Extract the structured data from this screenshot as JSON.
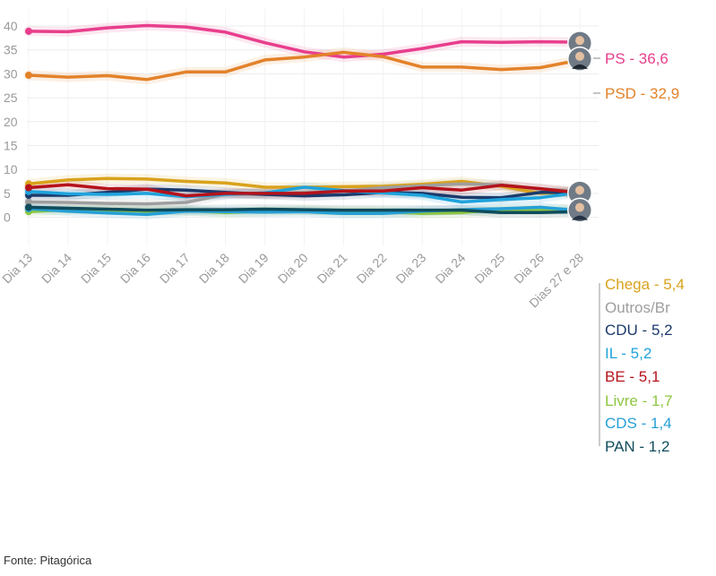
{
  "source": "Fonte: Pitagórica",
  "chart_data": {
    "type": "line",
    "categories": [
      "Dia 13",
      "Dia 14",
      "Dia 15",
      "Dia 16",
      "Dia 17",
      "Dia 18",
      "Dia 19",
      "Dia 20",
      "Dia 21",
      "Dia 22",
      "Dia 23",
      "Dia 24",
      "Dia 25",
      "Dia 26",
      "Dias 27 e 28"
    ],
    "y_ticks": [
      "40",
      "35",
      "30",
      "25",
      "20",
      "15",
      "10",
      "5",
      "0"
    ],
    "ylim": [
      -6,
      42
    ],
    "grid": true,
    "series": [
      {
        "name": "PS",
        "label": "PS - 36,6",
        "color": "#e83e8c",
        "values": [
          38.9,
          38.8,
          39.6,
          40.1,
          39.8,
          38.7,
          36.5,
          34.6,
          33.5,
          34.1,
          35.3,
          36.7,
          36.6,
          36.7,
          36.6
        ]
      },
      {
        "name": "PSD",
        "label": "PSD - 32,9",
        "color": "#e3822a",
        "values": [
          29.7,
          29.3,
          29.6,
          28.8,
          30.4,
          30.4,
          32.9,
          33.5,
          34.5,
          33.6,
          31.4,
          31.4,
          30.9,
          31.3,
          32.9
        ]
      },
      {
        "name": "Chega",
        "label": "Chega - 5,4",
        "color": "#d9a21c",
        "values": [
          7.0,
          7.8,
          8.1,
          8.0,
          7.5,
          7.2,
          6.3,
          6.3,
          6.4,
          6.5,
          6.9,
          7.5,
          6.5,
          5.0,
          5.4
        ]
      },
      {
        "name": "Outros/Br",
        "label": "Outros/Br",
        "color": "#9e9e9e",
        "values": [
          3.2,
          3.1,
          2.9,
          2.8,
          3.1,
          4.8,
          4.8,
          5.2,
          5.5,
          6.2,
          6.6,
          7.0,
          6.8,
          5.9,
          5.4
        ]
      },
      {
        "name": "CDU",
        "label": "CDU - 5,2",
        "color": "#1b3a6b",
        "values": [
          4.6,
          4.6,
          5.2,
          5.9,
          5.7,
          5.2,
          4.8,
          4.5,
          4.7,
          5.2,
          5.0,
          4.2,
          4.1,
          5.2,
          5.2
        ]
      },
      {
        "name": "IL",
        "label": "IL - 5,2",
        "color": "#1ea3dc",
        "values": [
          5.4,
          4.9,
          4.8,
          5.0,
          4.3,
          4.8,
          5.1,
          6.3,
          5.6,
          5.1,
          4.6,
          3.2,
          3.7,
          4.1,
          5.2
        ]
      },
      {
        "name": "BE",
        "label": "BE - 5,1",
        "color": "#b5121b",
        "values": [
          6.2,
          6.8,
          6.0,
          5.9,
          4.5,
          5.0,
          5.0,
          5.0,
          5.5,
          5.5,
          6.2,
          5.7,
          6.7,
          6.0,
          5.1
        ]
      },
      {
        "name": "Livre",
        "label": "Livre - 1,7",
        "color": "#8dc63f",
        "values": [
          1.2,
          1.6,
          1.5,
          1.3,
          1.4,
          1.0,
          1.3,
          1.5,
          1.2,
          1.2,
          0.8,
          1.0,
          1.6,
          1.6,
          1.7
        ]
      },
      {
        "name": "CDS",
        "label": "CDS - 1,4",
        "color": "#26a0d8",
        "values": [
          1.8,
          1.3,
          0.9,
          0.6,
          1.3,
          1.2,
          1.1,
          1.2,
          0.8,
          0.8,
          1.3,
          1.6,
          1.8,
          2.1,
          1.4
        ]
      },
      {
        "name": "PAN",
        "label": "PAN - 1,2",
        "color": "#0f4c5c",
        "values": [
          2.1,
          1.9,
          1.7,
          1.5,
          1.6,
          1.6,
          1.7,
          1.6,
          1.5,
          1.5,
          1.5,
          1.5,
          1.0,
          1.0,
          1.2
        ]
      }
    ]
  }
}
